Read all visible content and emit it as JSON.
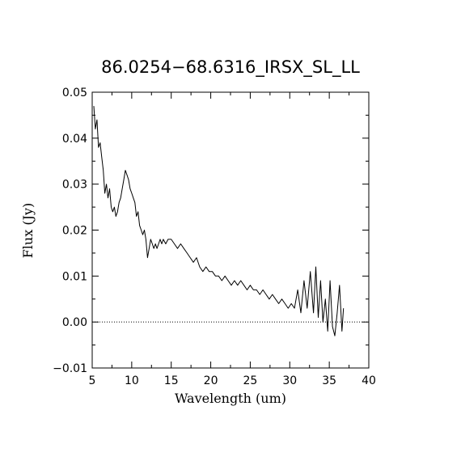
{
  "chart_data": {
    "type": "line",
    "title": "86.0254−68.6316_IRSX_SL_LL",
    "xlabel": "Wavelength (um)",
    "ylabel": "Flux (Jy)",
    "xlim": [
      5,
      40
    ],
    "ylim": [
      -0.01,
      0.05
    ],
    "x_ticks": [
      "5",
      "10",
      "15",
      "20",
      "25",
      "30",
      "35",
      "40"
    ],
    "y_ticks": [
      "−0.01",
      "0.00",
      "0.01",
      "0.02",
      "0.03",
      "0.04",
      "0.05"
    ],
    "zero_line": true,
    "grid": false,
    "series": [
      {
        "x": [
          5.2,
          5.4,
          5.6,
          5.8,
          6.0,
          6.2,
          6.4,
          6.6,
          6.8,
          7.0,
          7.2,
          7.4,
          7.6,
          7.8,
          8.0,
          8.2,
          8.4,
          8.6,
          8.8,
          9.0,
          9.2,
          9.4,
          9.6,
          9.8,
          10.0,
          10.2,
          10.4,
          10.6,
          10.8,
          11.0,
          11.2,
          11.4,
          11.6,
          11.8,
          12.0,
          12.2,
          12.4,
          12.6,
          12.8,
          13.0,
          13.2,
          13.4,
          13.6,
          13.8,
          14.0,
          14.3,
          14.6,
          15.0,
          15.4,
          15.8,
          16.2,
          16.6,
          17.0,
          17.4,
          17.8,
          18.2,
          18.6,
          19.0,
          19.4,
          19.8,
          20.2,
          20.6,
          21.0,
          21.4,
          21.8,
          22.2,
          22.6,
          23.0,
          23.4,
          23.8,
          24.2,
          24.6,
          25.0,
          25.4,
          25.8,
          26.2,
          26.6,
          27.0,
          27.4,
          27.8,
          28.2,
          28.6,
          29.0,
          29.4,
          29.8,
          30.2,
          30.6,
          31.0,
          31.4,
          31.8,
          32.2,
          32.6,
          33.0,
          33.3,
          33.6,
          33.9,
          34.2,
          34.5,
          34.8,
          35.1,
          35.4,
          35.7,
          36.0,
          36.3,
          36.6,
          36.8
        ],
        "y": [
          0.047,
          0.042,
          0.044,
          0.038,
          0.039,
          0.036,
          0.033,
          0.028,
          0.03,
          0.027,
          0.029,
          0.025,
          0.024,
          0.025,
          0.023,
          0.024,
          0.026,
          0.027,
          0.029,
          0.031,
          0.033,
          0.032,
          0.031,
          0.029,
          0.028,
          0.027,
          0.026,
          0.023,
          0.024,
          0.021,
          0.02,
          0.019,
          0.02,
          0.018,
          0.014,
          0.016,
          0.018,
          0.017,
          0.016,
          0.017,
          0.016,
          0.017,
          0.018,
          0.017,
          0.018,
          0.017,
          0.018,
          0.018,
          0.017,
          0.016,
          0.017,
          0.016,
          0.015,
          0.014,
          0.013,
          0.014,
          0.012,
          0.011,
          0.012,
          0.011,
          0.011,
          0.01,
          0.01,
          0.009,
          0.01,
          0.009,
          0.008,
          0.009,
          0.008,
          0.009,
          0.008,
          0.007,
          0.008,
          0.007,
          0.007,
          0.006,
          0.007,
          0.006,
          0.005,
          0.006,
          0.005,
          0.004,
          0.005,
          0.004,
          0.003,
          0.004,
          0.003,
          0.007,
          0.002,
          0.009,
          0.003,
          0.011,
          0.002,
          0.012,
          0.001,
          0.009,
          0.0,
          0.005,
          -0.002,
          0.009,
          -0.001,
          -0.003,
          0.002,
          0.008,
          -0.002,
          0.003
        ]
      }
    ]
  }
}
